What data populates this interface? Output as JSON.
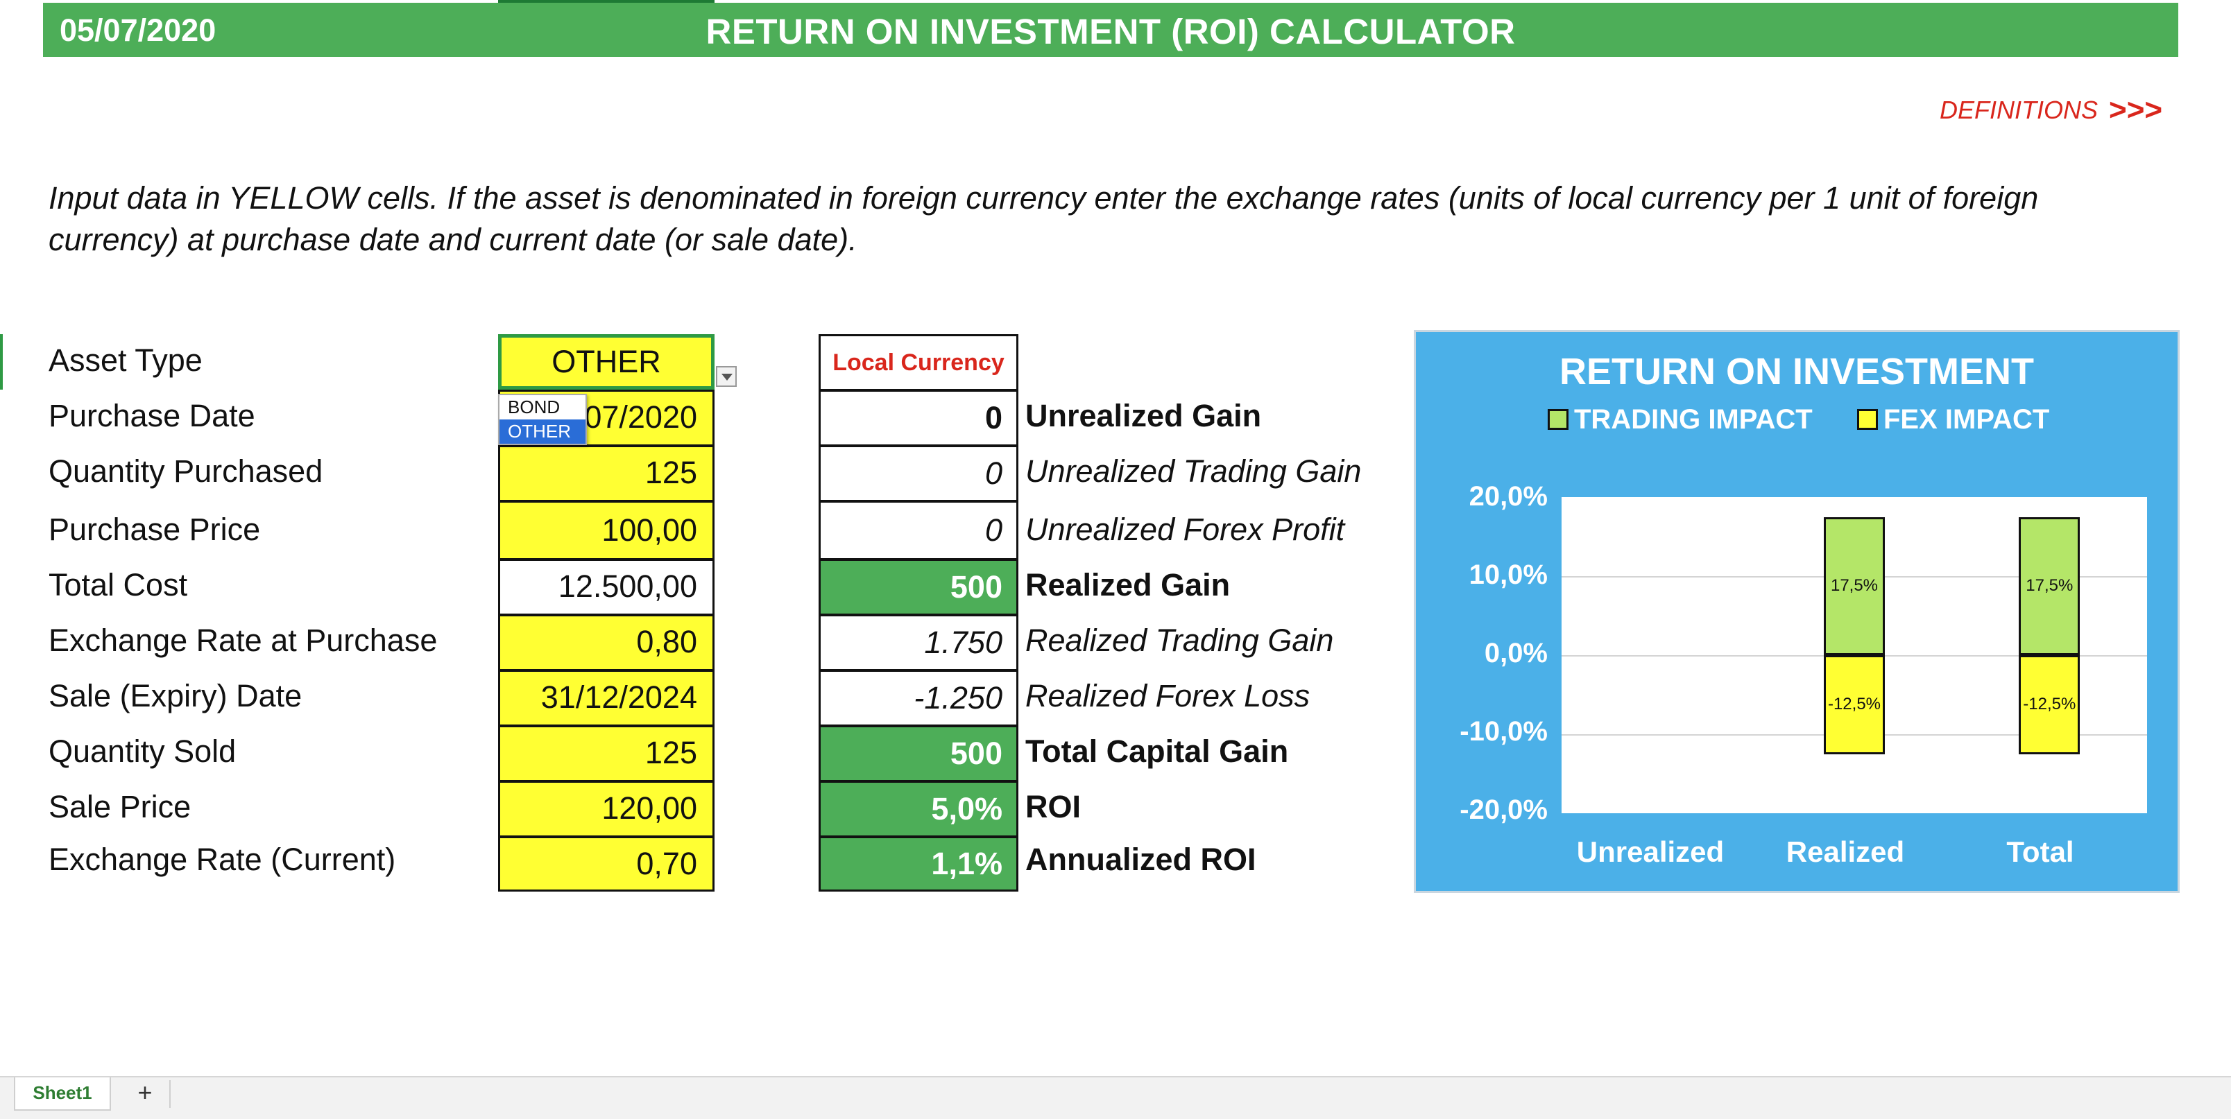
{
  "header": {
    "date": "05/07/2020",
    "title": "RETURN ON INVESTMENT (ROI) CALCULATOR"
  },
  "definitions": {
    "label": "DEFINITIONS",
    "arrow": ">>>"
  },
  "instructions": "Input data in YELLOW cells. If the asset is denominated in foreign currency enter the exchange rates (units of local currency per 1 unit of foreign currency) at purchase date and current date (or sale date).",
  "inputs": {
    "asset_type": {
      "label": "Asset Type",
      "value": "OTHER"
    },
    "purchase_date": {
      "label": "Purchase Date",
      "value": "07/2020"
    },
    "quantity_purchased": {
      "label": "Quantity Purchased",
      "value": "125"
    },
    "purchase_price": {
      "label": "Purchase Price",
      "value": "100,00"
    },
    "total_cost": {
      "label": "Total Cost",
      "value": "12.500,00"
    },
    "exchange_rate_purchase": {
      "label": "Exchange Rate at Purchase",
      "value": "0,80"
    },
    "sale_date": {
      "label": "Sale (Expiry) Date",
      "value": "31/12/2024"
    },
    "quantity_sold": {
      "label": "Quantity Sold",
      "value": "125"
    },
    "sale_price": {
      "label": "Sale Price",
      "value": "120,00"
    },
    "exchange_rate_current": {
      "label": "Exchange Rate (Current)",
      "value": "0,70"
    }
  },
  "dropdown": {
    "options": [
      "BOND",
      "OTHER"
    ],
    "selected": "OTHER"
  },
  "results": {
    "header": "Local Currency",
    "unrealized_gain": {
      "value": "0",
      "label": "Unrealized Gain"
    },
    "unrealized_trading_gain": {
      "value": "0",
      "label": "Unrealized Trading Gain"
    },
    "unrealized_forex_profit": {
      "value": "0",
      "label": "Unrealized Forex Profit"
    },
    "realized_gain": {
      "value": "500",
      "label": "Realized Gain"
    },
    "realized_trading_gain": {
      "value": "1.750",
      "label": "Realized Trading Gain"
    },
    "realized_forex_loss": {
      "value": "-1.250",
      "label": "Realized Forex Loss"
    },
    "total_capital_gain": {
      "value": "500",
      "label": "Total Capital Gain"
    },
    "roi": {
      "value": "5,0%",
      "label": "ROI"
    },
    "annualized_roi": {
      "value": "1,1%",
      "label": "Annualized ROI"
    }
  },
  "chart_data": {
    "type": "bar",
    "title": "RETURN ON INVESTMENT",
    "categories": [
      "Unrealized",
      "Realized",
      "Total"
    ],
    "series": [
      {
        "name": "TRADING IMPACT",
        "values": [
          0,
          17.5,
          17.5
        ],
        "color": "#b4e668",
        "labels": [
          "",
          "17,5%",
          "17,5%"
        ]
      },
      {
        "name": "FEX IMPACT",
        "values": [
          0,
          -12.5,
          -12.5
        ],
        "color": "#ffff33",
        "labels": [
          "",
          "-12,5%",
          "-12,5%"
        ]
      }
    ],
    "yticks": [
      "20,0%",
      "10,0%",
      "0,0%",
      "-10,0%",
      "-20,0%"
    ],
    "ylim": [
      -20,
      20
    ],
    "stacked": true,
    "legend_position": "top"
  },
  "sheet_tabs": {
    "active": "Sheet1",
    "add_label": "+"
  },
  "colors": {
    "header_green": "#4dae58",
    "input_yellow": "#ffff33",
    "chart_blue": "#4bb0e8",
    "accent_red": "#d9261c"
  }
}
